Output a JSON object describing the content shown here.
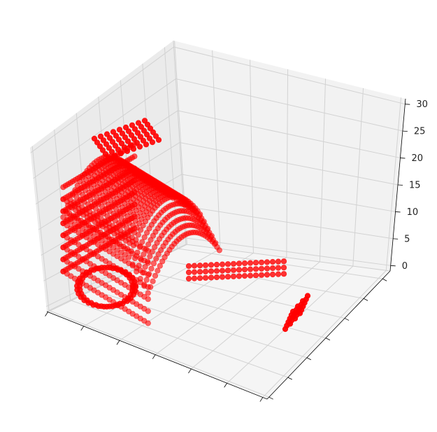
{
  "chart_data": {
    "type": "scatter",
    "projection": "3d",
    "title": "",
    "xlabel": "",
    "ylabel": "",
    "zlabel": "",
    "zlim": [
      -1,
      31
    ],
    "z_ticks": [
      {
        "value": 0,
        "label": "0"
      },
      {
        "value": 5,
        "label": "5"
      },
      {
        "value": 10,
        "label": "10"
      },
      {
        "value": 15,
        "label": "15"
      },
      {
        "value": 20,
        "label": "20"
      },
      {
        "value": 25,
        "label": "25"
      },
      {
        "value": 30,
        "label": "30"
      }
    ],
    "x_tick_labels_shown": false,
    "y_tick_labels_shown": false,
    "grid": true,
    "marker_color": "#ff0000",
    "description_of_points": "voxelized 3D object rendered as red spheres"
  }
}
